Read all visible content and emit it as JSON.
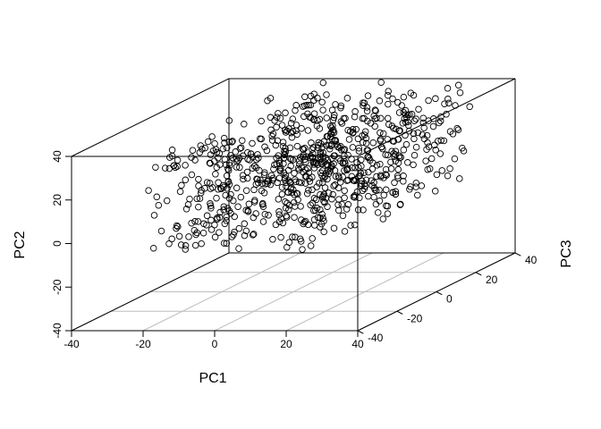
{
  "chart_data": {
    "type": "scatter",
    "projection": "3d",
    "title": "",
    "xlabel": "PC1",
    "ylabel": "PC2",
    "zlabel": "PC3",
    "xlim": [
      -40,
      40
    ],
    "ylim": [
      -40,
      40
    ],
    "zlim": [
      -40,
      40
    ],
    "x_ticks": [
      -40,
      -20,
      0,
      20,
      40
    ],
    "y_ticks": [
      -40,
      -20,
      0,
      20,
      40
    ],
    "z_ticks": [
      -40,
      -20,
      0,
      20,
      40
    ],
    "x_tick_labels": [
      "-40",
      "-20",
      "0",
      "20",
      "40"
    ],
    "y_tick_labels": [
      "-40",
      "-20",
      "0",
      "20",
      "40"
    ],
    "z_tick_labels": [
      "-40",
      "-20",
      "0",
      "20",
      "40"
    ],
    "point_count": 800,
    "point_distribution": {
      "x_range": [
        -20,
        30
      ],
      "y_range": [
        -5,
        40
      ],
      "z_range": [
        -40,
        40
      ]
    },
    "grid_on_floor": true,
    "grid_color": "#bebebe",
    "point_color": "#000000",
    "box_color": "#000000"
  }
}
